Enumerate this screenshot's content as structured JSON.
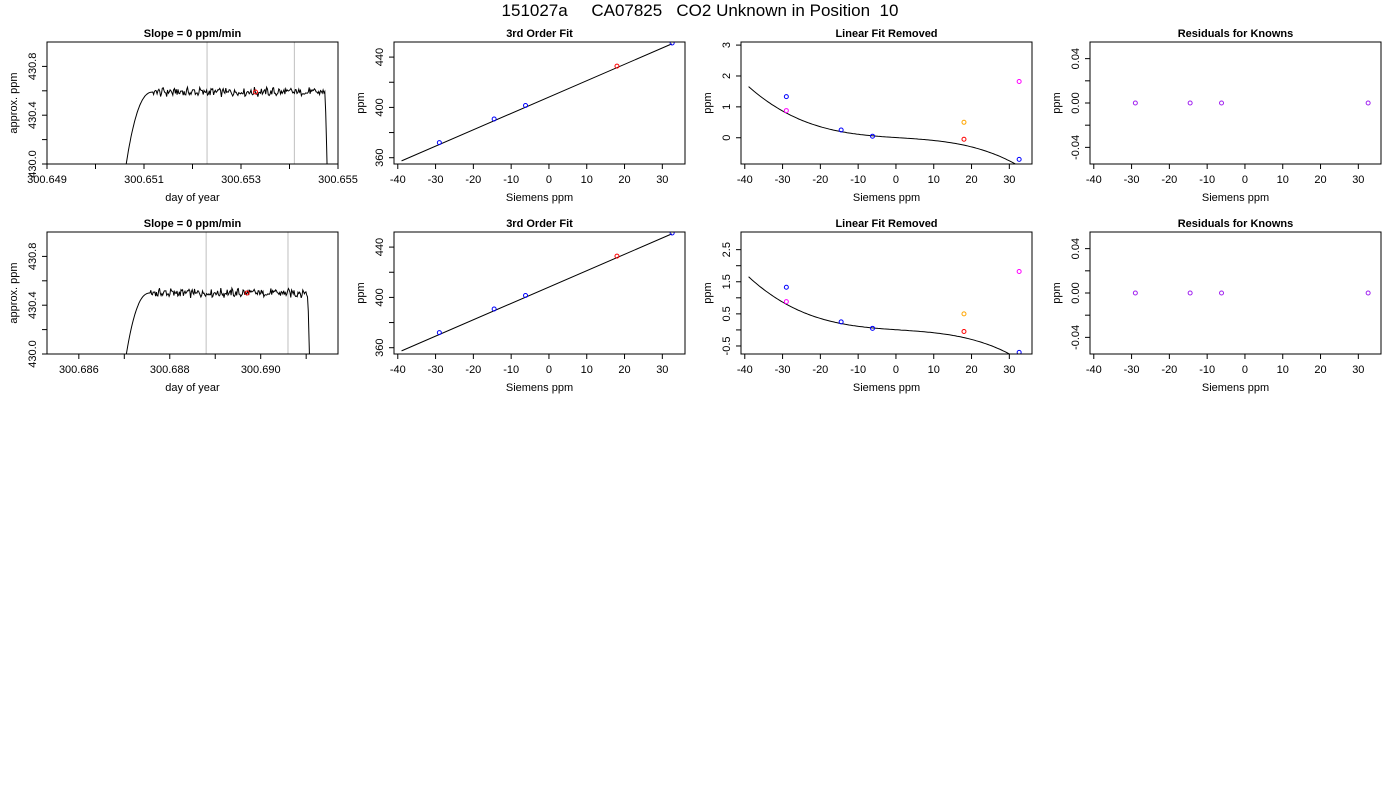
{
  "header": {
    "title": "151027a     CA07825   CO2 Unknown in Position  10"
  },
  "colors": {
    "blue": "#0000ff",
    "red": "#ff0000",
    "orange": "#ffa500",
    "magenta": "#ff00ff",
    "purple": "#a020f0",
    "line": "#000000",
    "vline": "#bebebe"
  },
  "chart_data": [
    {
      "type": "line",
      "title": "Slope =  0  ppm/min",
      "xlabel": "day of year",
      "ylabel": "approx. ppm",
      "xlim": [
        300.649,
        300.655
      ],
      "ylim": [
        430.0,
        431.0
      ],
      "xticks": [
        300.649,
        300.651,
        300.653,
        300.655
      ],
      "xtick_labels": [
        "300.649",
        "300.651",
        "300.653",
        "300.655"
      ],
      "xminor": [
        300.65,
        300.652,
        300.654
      ],
      "yticks": [
        430.0,
        430.4,
        430.8
      ],
      "ytick_labels": [
        "430.0",
        "430.4",
        "430.8"
      ],
      "yminor": [
        430.2,
        430.6
      ],
      "vlines": [
        300.6523,
        300.6541
      ],
      "trace": {
        "start": 300.6505,
        "end": 300.6548,
        "plateau": 430.59,
        "low": 429.6
      },
      "marker": {
        "x": 300.6533,
        "y": 430.59
      }
    },
    {
      "type": "scatter",
      "title": "3rd Order Fit",
      "xlabel": "Siemens ppm",
      "ylabel": "ppm",
      "xlim": [
        -41,
        36
      ],
      "ylim": [
        355,
        452
      ],
      "xticks": [
        -40,
        -30,
        -20,
        -10,
        0,
        10,
        20,
        30
      ],
      "xtick_labels": [
        "-40",
        "-30",
        "-20",
        "-10",
        "0",
        "10",
        "20",
        "30"
      ],
      "yticks": [
        360,
        400,
        440
      ],
      "ytick_labels": [
        "360",
        "400",
        "440"
      ],
      "yminor": [
        380,
        420
      ],
      "fit_line": [
        [
          -39,
          357.5
        ],
        [
          32.5,
          450.5
        ]
      ],
      "points": [
        {
          "x": -29,
          "y": 372,
          "color": "blue"
        },
        {
          "x": -14.5,
          "y": 390.8,
          "color": "blue"
        },
        {
          "x": -6.2,
          "y": 401.5,
          "color": "blue"
        },
        {
          "x": 18,
          "y": 432.8,
          "color": "red"
        },
        {
          "x": 32.6,
          "y": 451.2,
          "color": "blue"
        }
      ]
    },
    {
      "type": "scatter",
      "title": "Linear Fit Removed",
      "xlabel": "Siemens ppm",
      "ylabel": "ppm",
      "xlim": [
        -41,
        36
      ],
      "ylim": [
        -0.85,
        3.1
      ],
      "xticks": [
        -40,
        -30,
        -20,
        -10,
        0,
        10,
        20,
        30
      ],
      "xtick_labels": [
        "-40",
        "-30",
        "-20",
        "-10",
        "0",
        "10",
        "20",
        "30"
      ],
      "yticks": [
        0,
        1,
        2,
        3
      ],
      "ytick_labels": [
        "0",
        "1",
        "2",
        "3"
      ],
      "curve": {
        "x0": -39,
        "x1": 32.5,
        "coef": [
          0.00625,
          -0.000268,
          -3.23e-06,
          -2.16e-08
        ]
      },
      "points": [
        {
          "x": -29,
          "y": 1.33,
          "color": "blue"
        },
        {
          "x": -14.5,
          "y": 0.25,
          "color": "blue"
        },
        {
          "x": -6.2,
          "y": 0.05,
          "color": "blue"
        },
        {
          "x": 18,
          "y": -0.05,
          "color": "red"
        },
        {
          "x": 32.6,
          "y": -0.7,
          "color": "blue"
        },
        {
          "x": -29,
          "y": 0.88,
          "color": "magenta"
        },
        {
          "x": 18,
          "y": 0.5,
          "color": "orange"
        },
        {
          "x": 32.6,
          "y": 1.82,
          "color": "magenta"
        }
      ]
    },
    {
      "type": "scatter",
      "title": "Residuals for Knowns",
      "xlabel": "Siemens ppm",
      "ylabel": "ppm",
      "xlim": [
        -41,
        36
      ],
      "ylim": [
        -0.055,
        0.055
      ],
      "xticks": [
        -40,
        -30,
        -20,
        -10,
        0,
        10,
        20,
        30
      ],
      "xtick_labels": [
        "-40",
        "-30",
        "-20",
        "-10",
        "0",
        "10",
        "20",
        "30"
      ],
      "yticks": [
        -0.04,
        0,
        0.04
      ],
      "ytick_labels": [
        "-0.04",
        "0.00",
        "0.04"
      ],
      "yminor": [
        -0.02,
        0.02
      ],
      "points": [
        {
          "x": -29,
          "y": 0,
          "color": "purple"
        },
        {
          "x": -14.5,
          "y": 0,
          "color": "purple"
        },
        {
          "x": -6.2,
          "y": 0,
          "color": "purple"
        },
        {
          "x": 32.6,
          "y": 0,
          "color": "purple"
        }
      ]
    },
    {
      "type": "line",
      "title": "Slope =  0  ppm/min",
      "xlabel": "day of year",
      "ylabel": "approx. ppm",
      "xlim": [
        300.6853,
        300.6917
      ],
      "ylim": [
        430.0,
        431.0
      ],
      "xticks": [
        300.686,
        300.688,
        300.69
      ],
      "xtick_labels": [
        "300.686",
        "300.688",
        "300.690"
      ],
      "xminor": [
        300.687,
        300.689,
        300.691
      ],
      "yticks": [
        430.0,
        430.4,
        430.8
      ],
      "ytick_labels": [
        "430.0",
        "430.4",
        "430.8"
      ],
      "yminor": [
        430.2,
        430.6
      ],
      "vlines": [
        300.6888,
        300.6906
      ],
      "trace": {
        "start": 300.6869,
        "end": 300.6911,
        "plateau": 430.5,
        "low": 429.6
      },
      "marker": {
        "x": 300.6897,
        "y": 430.5
      }
    },
    {
      "type": "scatter",
      "title": "3rd Order Fit",
      "xlabel": "Siemens ppm",
      "ylabel": "ppm",
      "xlim": [
        -41,
        36
      ],
      "ylim": [
        355,
        452
      ],
      "xticks": [
        -40,
        -30,
        -20,
        -10,
        0,
        10,
        20,
        30
      ],
      "xtick_labels": [
        "-40",
        "-30",
        "-20",
        "-10",
        "0",
        "10",
        "20",
        "30"
      ],
      "yticks": [
        360,
        400,
        440
      ],
      "ytick_labels": [
        "360",
        "400",
        "440"
      ],
      "yminor": [
        380,
        420
      ],
      "fit_line": [
        [
          -39,
          357.5
        ],
        [
          32.5,
          450.5
        ]
      ],
      "points": [
        {
          "x": -29,
          "y": 372,
          "color": "blue"
        },
        {
          "x": -14.5,
          "y": 390.8,
          "color": "blue"
        },
        {
          "x": -6.2,
          "y": 401.5,
          "color": "blue"
        },
        {
          "x": 18,
          "y": 432.8,
          "color": "red"
        },
        {
          "x": 32.6,
          "y": 451.2,
          "color": "blue"
        }
      ]
    },
    {
      "type": "scatter",
      "title": "Linear Fit Removed",
      "xlabel": "Siemens ppm",
      "ylabel": "ppm",
      "xlim": [
        -41,
        36
      ],
      "ylim": [
        -0.75,
        3.05
      ],
      "xticks": [
        -40,
        -30,
        -20,
        -10,
        0,
        10,
        20,
        30
      ],
      "xtick_labels": [
        "-40",
        "-30",
        "-20",
        "-10",
        "0",
        "10",
        "20",
        "30"
      ],
      "yticks": [
        -0.5,
        0.5,
        1.5,
        2.5
      ],
      "ytick_labels": [
        "-0.5",
        "0.5",
        "1.5",
        "2.5"
      ],
      "yminor": [
        0,
        1,
        2
      ],
      "curve": {
        "x0": -39,
        "x1": 32.5,
        "coef": [
          0.00625,
          -0.000268,
          -3.23e-06,
          -2.16e-08
        ]
      },
      "points": [
        {
          "x": -29,
          "y": 1.33,
          "color": "blue"
        },
        {
          "x": -14.5,
          "y": 0.25,
          "color": "blue"
        },
        {
          "x": -6.2,
          "y": 0.05,
          "color": "blue"
        },
        {
          "x": 18,
          "y": -0.05,
          "color": "red"
        },
        {
          "x": 32.6,
          "y": -0.7,
          "color": "blue"
        },
        {
          "x": -29,
          "y": 0.88,
          "color": "magenta"
        },
        {
          "x": 18,
          "y": 0.5,
          "color": "orange"
        },
        {
          "x": 32.6,
          "y": 1.82,
          "color": "magenta"
        }
      ]
    },
    {
      "type": "scatter",
      "title": "Residuals for Knowns",
      "xlabel": "Siemens ppm",
      "ylabel": "ppm",
      "xlim": [
        -41,
        36
      ],
      "ylim": [
        -0.055,
        0.055
      ],
      "xticks": [
        -40,
        -30,
        -20,
        -10,
        0,
        10,
        20,
        30
      ],
      "xtick_labels": [
        "-40",
        "-30",
        "-20",
        "-10",
        "0",
        "10",
        "20",
        "30"
      ],
      "yticks": [
        -0.04,
        0,
        0.04
      ],
      "ytick_labels": [
        "-0.04",
        "0.00",
        "0.04"
      ],
      "yminor": [
        -0.02,
        0.02
      ],
      "points": [
        {
          "x": -29,
          "y": 0,
          "color": "purple"
        },
        {
          "x": -14.5,
          "y": 0,
          "color": "purple"
        },
        {
          "x": -6.2,
          "y": 0,
          "color": "purple"
        },
        {
          "x": 32.6,
          "y": 0,
          "color": "purple"
        }
      ]
    }
  ]
}
